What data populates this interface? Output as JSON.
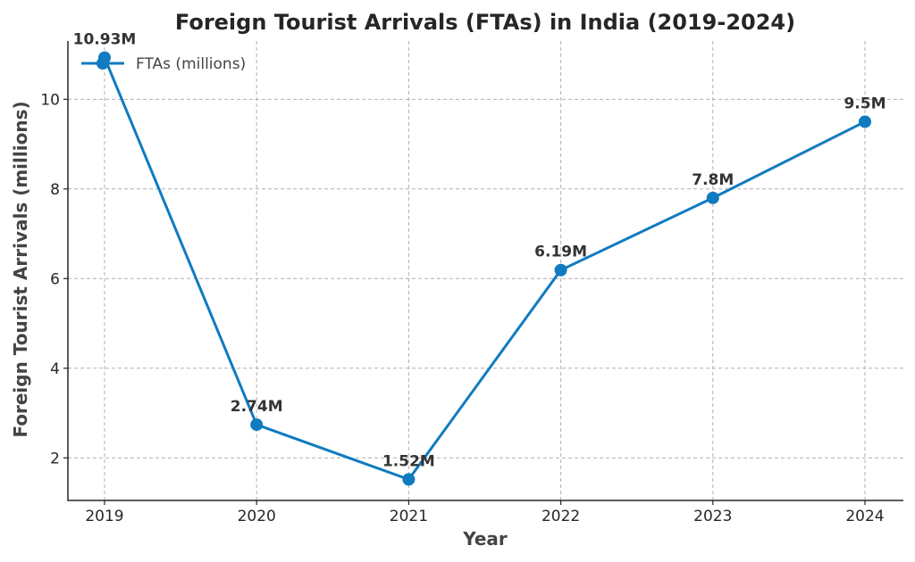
{
  "chart_data": {
    "type": "line",
    "title": "Foreign Tourist Arrivals (FTAs) in India (2019-2024)",
    "xlabel": "Year",
    "ylabel": "Foreign Tourist Arrivals (millions)",
    "categories": [
      "2019",
      "2020",
      "2021",
      "2022",
      "2023",
      "2024"
    ],
    "series": [
      {
        "name": "FTAs (millions)",
        "values": [
          10.93,
          2.74,
          1.52,
          6.19,
          7.8,
          9.5
        ],
        "data_labels": [
          "10.93M",
          "2.74M",
          "1.52M",
          "6.19M",
          "7.8M",
          "9.5M"
        ],
        "color": "#0f7bc0",
        "marker": "circle"
      }
    ],
    "ylim": [
      1.05,
      11.3
    ],
    "yticks": [
      2,
      4,
      6,
      8,
      10
    ],
    "grid": true,
    "legend_position": "top-left"
  }
}
